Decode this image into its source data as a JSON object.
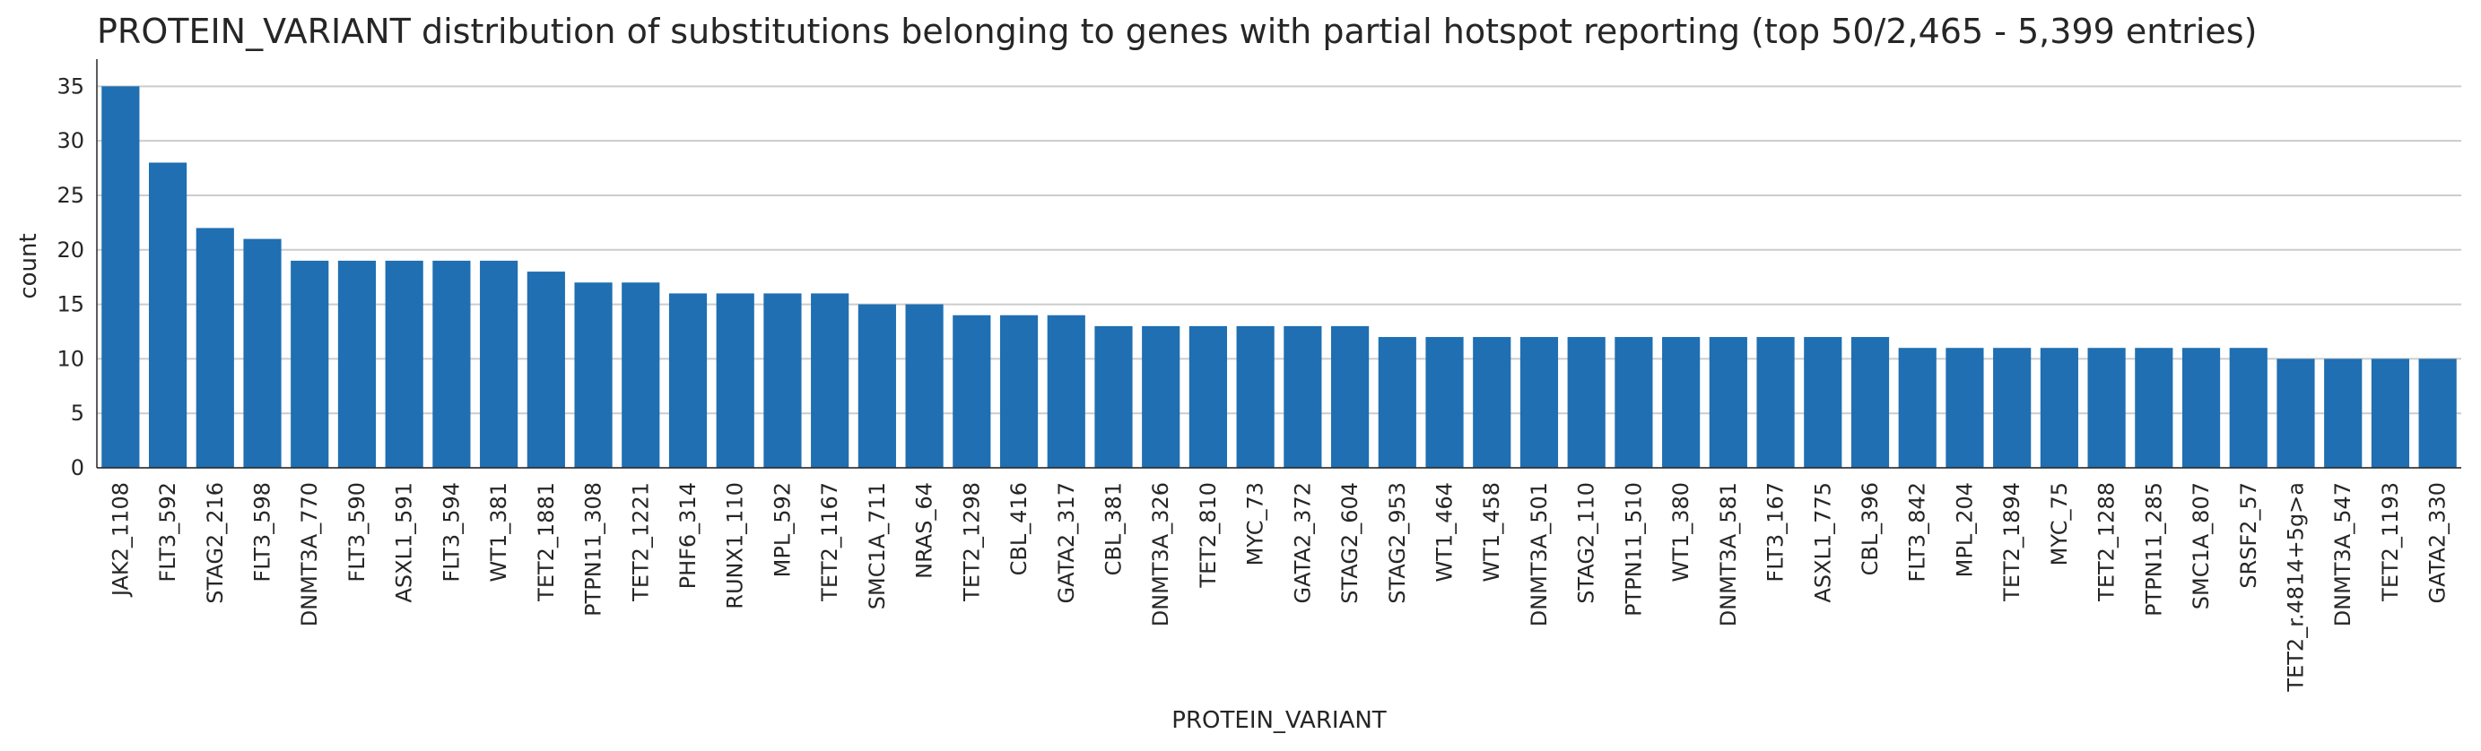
{
  "chart_data": {
    "type": "bar",
    "title": "PROTEIN_VARIANT distribution of substitutions belonging to genes with partial hotspot reporting (top 50/2,465 - 5,399 entries)",
    "xlabel": "PROTEIN_VARIANT",
    "ylabel": "count",
    "ylim": [
      0,
      37
    ],
    "yticks": [
      0,
      5,
      10,
      15,
      20,
      25,
      30,
      35
    ],
    "grid": "horizontal",
    "bar_color": "#1f6fb2",
    "categories": [
      "JAK2_1108",
      "FLT3_592",
      "STAG2_216",
      "FLT3_598",
      "DNMT3A_770",
      "FLT3_590",
      "ASXL1_591",
      "FLT3_594",
      "WT1_381",
      "TET2_1881",
      "PTPN11_308",
      "TET2_1221",
      "PHF6_314",
      "RUNX1_110",
      "MPL_592",
      "TET2_1167",
      "SMC1A_711",
      "NRAS_64",
      "TET2_1298",
      "CBL_416",
      "GATA2_317",
      "CBL_381",
      "DNMT3A_326",
      "TET2_810",
      "MYC_73",
      "GATA2_372",
      "STAG2_604",
      "STAG2_953",
      "WT1_464",
      "WT1_458",
      "DNMT3A_501",
      "STAG2_110",
      "PTPN11_510",
      "WT1_380",
      "DNMT3A_581",
      "FLT3_167",
      "ASXL1_775",
      "CBL_396",
      "FLT3_842",
      "MPL_204",
      "TET2_1894",
      "MYC_75",
      "TET2_1288",
      "PTPN11_285",
      "SMC1A_807",
      "SRSF2_57",
      "TET2_r.4814+5g>a",
      "DNMT3A_547",
      "TET2_1193",
      "GATA2_330"
    ],
    "values": [
      35,
      28,
      22,
      21,
      19,
      19,
      19,
      19,
      19,
      18,
      17,
      17,
      16,
      16,
      16,
      16,
      15,
      15,
      14,
      14,
      14,
      13,
      13,
      13,
      13,
      13,
      13,
      12,
      12,
      12,
      12,
      12,
      12,
      12,
      12,
      12,
      12,
      12,
      11,
      11,
      11,
      11,
      11,
      11,
      11,
      11,
      10,
      10,
      10,
      10
    ]
  }
}
